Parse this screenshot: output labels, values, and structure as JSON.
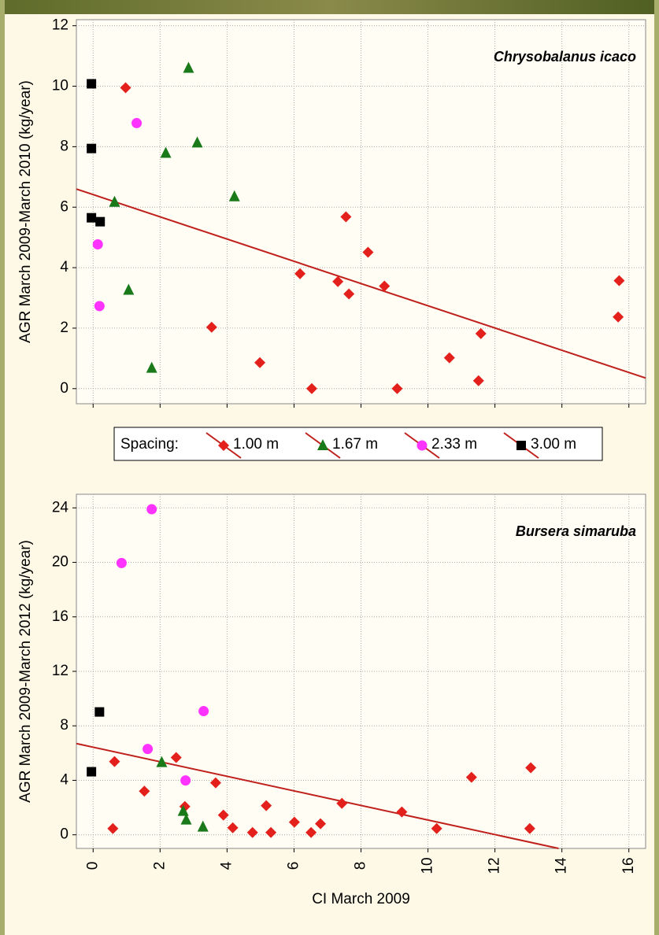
{
  "chart_data": [
    {
      "type": "scatter",
      "title": "Chrysobalanus icaco",
      "y_label": "AGR March 2009-March 2010 (kg/year)",
      "xlim": [
        -0.5,
        16.5
      ],
      "ylim": [
        -0.5,
        12.2
      ],
      "xticks": [
        0,
        2,
        4,
        6,
        8,
        10,
        12,
        14,
        16
      ],
      "yticks": [
        0,
        2,
        4,
        6,
        8,
        10,
        12
      ],
      "show_xtick_labels": false,
      "grid": true,
      "legend_title": "Spacing:",
      "series": [
        {
          "name": "1.00 m",
          "color": "#e3201b",
          "marker": "diamond",
          "x": [
            0.97,
            3.54,
            4.98,
            6.18,
            6.53,
            7.31,
            7.55,
            7.64,
            8.21,
            8.7,
            9.08,
            10.64,
            11.58,
            11.51,
            15.71,
            15.68
          ],
          "values": [
            9.95,
            2.03,
            0.86,
            3.8,
            0,
            3.54,
            5.68,
            3.13,
            4.51,
            3.39,
            0,
            1.02,
            1.82,
            0.26,
            3.57,
            2.37
          ]
        },
        {
          "name": "1.67 m",
          "color": "#1a7a1a",
          "marker": "triangle",
          "x": [
            2.85,
            3.11,
            2.17,
            4.22,
            0.64,
            1.06,
            1.75
          ],
          "values": [
            10.6,
            8.13,
            7.79,
            6.35,
            6.17,
            3.26,
            0.68
          ]
        },
        {
          "name": "2.33 m",
          "color": "#ff33ff",
          "marker": "circle",
          "x": [
            1.3,
            0.14,
            0.19
          ],
          "values": [
            8.78,
            4.77,
            2.73
          ]
        },
        {
          "name": "3.00 m",
          "color": "#000000",
          "marker": "square",
          "x": [
            -0.05,
            -0.05,
            -0.05,
            0.21
          ],
          "values": [
            10.08,
            7.94,
            5.65,
            5.52
          ]
        }
      ],
      "trend": {
        "color": "#c0201b",
        "x": [
          -0.5,
          16.5
        ],
        "values": [
          6.6,
          0.35
        ]
      }
    },
    {
      "type": "scatter",
      "title": "Bursera simaruba",
      "y_label": "AGR March 2009-March 2012 (kg/year)",
      "x_label": "CI March 2009",
      "xlim": [
        -0.5,
        16.5
      ],
      "ylim": [
        -1,
        25
      ],
      "xticks": [
        0,
        2,
        4,
        6,
        8,
        10,
        12,
        14,
        16
      ],
      "yticks": [
        0,
        4,
        8,
        12,
        16,
        20,
        24
      ],
      "show_xtick_labels": true,
      "grid": true,
      "series": [
        {
          "name": "1.00 m",
          "color": "#e3201b",
          "marker": "diamond",
          "x": [
            0.64,
            0.59,
            1.53,
            2.48,
            2.74,
            3.66,
            3.89,
            4.17,
            4.76,
            5.17,
            5.31,
            6.01,
            6.51,
            6.79,
            7.43,
            9.22,
            10.26,
            11.3,
            13.07,
            13.04
          ],
          "values": [
            5.38,
            0.46,
            3.2,
            5.67,
            2.08,
            3.82,
            1.45,
            0.52,
            0.17,
            2.14,
            0.17,
            0.93,
            0.17,
            0.81,
            2.31,
            1.68,
            0.46,
            4.22,
            4.92,
            0.46
          ]
        },
        {
          "name": "1.67 m",
          "color": "#1a7a1a",
          "marker": "triangle",
          "x": [
            2.05,
            2.69,
            2.78,
            3.28
          ],
          "values": [
            5.32,
            1.74,
            1.1,
            0.58
          ]
        },
        {
          "name": "2.33 m",
          "color": "#ff33ff",
          "marker": "circle",
          "x": [
            1.75,
            0.85,
            1.63,
            2.76,
            3.3
          ],
          "values": [
            23.9,
            19.95,
            6.3,
            3.99,
            9.08
          ]
        },
        {
          "name": "3.00 m",
          "color": "#000000",
          "marker": "square",
          "x": [
            0.19,
            -0.05
          ],
          "values": [
            9.02,
            4.63
          ]
        }
      ],
      "trend": {
        "color": "#c0201b",
        "x": [
          -0.5,
          13.9
        ],
        "values": [
          6.7,
          -1
        ]
      }
    }
  ]
}
